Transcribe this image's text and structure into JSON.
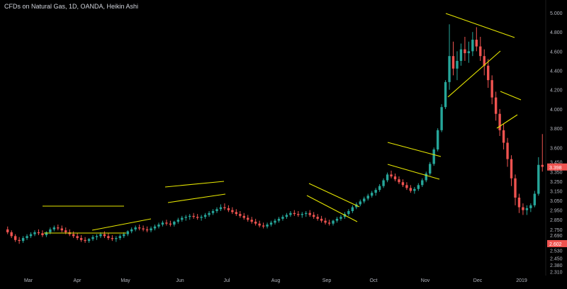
{
  "header": {
    "title": "CFDs on Natural Gas, 1D, OANDA, Heikin Ashi"
  },
  "colors": {
    "background": "#000000",
    "up": "#26a69a",
    "down": "#ef5350",
    "trendline": "#e6e600",
    "axis_text": "#b2b5be",
    "price_tag": "#ef5350"
  },
  "chart_data": {
    "type": "candlestick",
    "title": "CFDs on Natural Gas, 1D, OANDA, Heikin Ashi",
    "xlabel": "",
    "ylabel": "",
    "ylim": [
      2.3,
      5.0
    ],
    "y_ticks": [
      5.0,
      4.8,
      4.6,
      4.4,
      4.2,
      4.0,
      3.8,
      3.6,
      3.45,
      3.35,
      3.25,
      3.15,
      3.05,
      2.95,
      2.85,
      2.75,
      2.69,
      2.53,
      2.45,
      2.38,
      2.31
    ],
    "y_tick_labels": [
      "5.000",
      "4.800",
      "4.600",
      "4.400",
      "4.200",
      "4.000",
      "3.800",
      "3.600",
      "3.450",
      "3.350",
      "3.250",
      "3.150",
      "3.050",
      "2.950",
      "2.850",
      "2.750",
      "2.690",
      "2.530",
      "2.450",
      "2.380",
      "2.310"
    ],
    "x_labels": [
      "Mar",
      "Apr",
      "May",
      "Jun",
      "Jul",
      "Aug",
      "Sep",
      "Oct",
      "Nov",
      "Dec",
      "2019"
    ],
    "price_tags": [
      {
        "label": "3.398",
        "value": 3.398
      },
      {
        "label": "2.602",
        "value": 2.602
      }
    ],
    "series": [
      {
        "values": [
          [
            2.75,
            2.78,
            2.7,
            2.72
          ],
          [
            2.72,
            2.74,
            2.66,
            2.68
          ],
          [
            2.68,
            2.7,
            2.62,
            2.64
          ],
          [
            2.64,
            2.67,
            2.6,
            2.63
          ],
          [
            2.63,
            2.68,
            2.61,
            2.66
          ],
          [
            2.66,
            2.7,
            2.64,
            2.68
          ],
          [
            2.68,
            2.72,
            2.66,
            2.7
          ],
          [
            2.7,
            2.74,
            2.68,
            2.72
          ],
          [
            2.72,
            2.75,
            2.69,
            2.71
          ],
          [
            2.71,
            2.74,
            2.67,
            2.69
          ],
          [
            2.69,
            2.73,
            2.67,
            2.72
          ],
          [
            2.72,
            2.77,
            2.7,
            2.75
          ],
          [
            2.75,
            2.79,
            2.73,
            2.77
          ],
          [
            2.77,
            2.8,
            2.74,
            2.76
          ],
          [
            2.76,
            2.79,
            2.72,
            2.74
          ],
          [
            2.74,
            2.77,
            2.7,
            2.72
          ],
          [
            2.72,
            2.75,
            2.68,
            2.7
          ],
          [
            2.7,
            2.73,
            2.66,
            2.68
          ],
          [
            2.68,
            2.71,
            2.64,
            2.66
          ],
          [
            2.66,
            2.69,
            2.62,
            2.64
          ],
          [
            2.64,
            2.67,
            2.61,
            2.63
          ],
          [
            2.63,
            2.66,
            2.61,
            2.65
          ],
          [
            2.65,
            2.69,
            2.63,
            2.67
          ],
          [
            2.67,
            2.7,
            2.64,
            2.68
          ],
          [
            2.68,
            2.72,
            2.66,
            2.7
          ],
          [
            2.7,
            2.73,
            2.66,
            2.68
          ],
          [
            2.68,
            2.71,
            2.64,
            2.66
          ],
          [
            2.66,
            2.69,
            2.63,
            2.65
          ],
          [
            2.65,
            2.68,
            2.62,
            2.66
          ],
          [
            2.66,
            2.7,
            2.64,
            2.68
          ],
          [
            2.68,
            2.72,
            2.66,
            2.7
          ],
          [
            2.7,
            2.74,
            2.68,
            2.73
          ],
          [
            2.73,
            2.77,
            2.71,
            2.75
          ],
          [
            2.75,
            2.79,
            2.73,
            2.77
          ],
          [
            2.77,
            2.8,
            2.74,
            2.76
          ],
          [
            2.76,
            2.79,
            2.73,
            2.75
          ],
          [
            2.75,
            2.78,
            2.72,
            2.74
          ],
          [
            2.74,
            2.78,
            2.72,
            2.76
          ],
          [
            2.76,
            2.8,
            2.74,
            2.78
          ],
          [
            2.78,
            2.82,
            2.76,
            2.8
          ],
          [
            2.8,
            2.84,
            2.78,
            2.82
          ],
          [
            2.82,
            2.85,
            2.79,
            2.81
          ],
          [
            2.81,
            2.84,
            2.78,
            2.8
          ],
          [
            2.8,
            2.84,
            2.78,
            2.83
          ],
          [
            2.83,
            2.87,
            2.81,
            2.85
          ],
          [
            2.85,
            2.89,
            2.83,
            2.87
          ],
          [
            2.87,
            2.9,
            2.84,
            2.88
          ],
          [
            2.88,
            2.91,
            2.85,
            2.89
          ],
          [
            2.89,
            2.92,
            2.86,
            2.88
          ],
          [
            2.88,
            2.91,
            2.85,
            2.87
          ],
          [
            2.87,
            2.9,
            2.84,
            2.88
          ],
          [
            2.88,
            2.92,
            2.86,
            2.9
          ],
          [
            2.9,
            2.94,
            2.88,
            2.92
          ],
          [
            2.92,
            2.96,
            2.9,
            2.94
          ],
          [
            2.94,
            2.98,
            2.92,
            2.96
          ],
          [
            2.96,
            3.01,
            2.94,
            2.98
          ],
          [
            2.98,
            3.02,
            2.95,
            2.97
          ],
          [
            2.97,
            3.0,
            2.93,
            2.95
          ],
          [
            2.95,
            2.98,
            2.91,
            2.93
          ],
          [
            2.93,
            2.96,
            2.89,
            2.91
          ],
          [
            2.91,
            2.94,
            2.87,
            2.89
          ],
          [
            2.89,
            2.92,
            2.85,
            2.87
          ],
          [
            2.87,
            2.9,
            2.83,
            2.85
          ],
          [
            2.85,
            2.88,
            2.81,
            2.83
          ],
          [
            2.83,
            2.86,
            2.79,
            2.81
          ],
          [
            2.81,
            2.84,
            2.77,
            2.79
          ],
          [
            2.79,
            2.82,
            2.76,
            2.78
          ],
          [
            2.78,
            2.82,
            2.76,
            2.8
          ],
          [
            2.8,
            2.84,
            2.78,
            2.82
          ],
          [
            2.82,
            2.86,
            2.8,
            2.84
          ],
          [
            2.84,
            2.88,
            2.82,
            2.86
          ],
          [
            2.86,
            2.9,
            2.84,
            2.88
          ],
          [
            2.88,
            2.92,
            2.86,
            2.9
          ],
          [
            2.9,
            2.94,
            2.88,
            2.92
          ],
          [
            2.92,
            2.95,
            2.89,
            2.91
          ],
          [
            2.91,
            2.94,
            2.88,
            2.9
          ],
          [
            2.9,
            2.93,
            2.87,
            2.91
          ],
          [
            2.91,
            2.94,
            2.88,
            2.92
          ],
          [
            2.92,
            2.95,
            2.88,
            2.9
          ],
          [
            2.9,
            2.93,
            2.86,
            2.88
          ],
          [
            2.88,
            2.91,
            2.84,
            2.86
          ],
          [
            2.86,
            2.89,
            2.82,
            2.84
          ],
          [
            2.84,
            2.87,
            2.8,
            2.82
          ],
          [
            2.82,
            2.85,
            2.79,
            2.81
          ],
          [
            2.81,
            2.85,
            2.79,
            2.84
          ],
          [
            2.84,
            2.88,
            2.82,
            2.86
          ],
          [
            2.86,
            2.9,
            2.84,
            2.88
          ],
          [
            2.88,
            2.93,
            2.86,
            2.91
          ],
          [
            2.91,
            2.96,
            2.89,
            2.94
          ],
          [
            2.94,
            3.0,
            2.92,
            2.98
          ],
          [
            2.98,
            3.03,
            2.96,
            3.01
          ],
          [
            3.01,
            3.06,
            2.99,
            3.04
          ],
          [
            3.04,
            3.09,
            3.02,
            3.07
          ],
          [
            3.07,
            3.12,
            3.05,
            3.1
          ],
          [
            3.1,
            3.15,
            3.08,
            3.13
          ],
          [
            3.13,
            3.18,
            3.1,
            3.16
          ],
          [
            3.16,
            3.22,
            3.14,
            3.2
          ],
          [
            3.2,
            3.28,
            3.18,
            3.26
          ],
          [
            3.26,
            3.34,
            3.24,
            3.32
          ],
          [
            3.32,
            3.36,
            3.28,
            3.3
          ],
          [
            3.3,
            3.33,
            3.25,
            3.27
          ],
          [
            3.27,
            3.3,
            3.22,
            3.24
          ],
          [
            3.24,
            3.27,
            3.19,
            3.21
          ],
          [
            3.21,
            3.24,
            3.16,
            3.18
          ],
          [
            3.18,
            3.21,
            3.13,
            3.15
          ],
          [
            3.15,
            3.19,
            3.12,
            3.17
          ],
          [
            3.17,
            3.23,
            3.15,
            3.21
          ],
          [
            3.21,
            3.28,
            3.19,
            3.26
          ],
          [
            3.26,
            3.35,
            3.24,
            3.33
          ],
          [
            3.33,
            3.45,
            3.31,
            3.43
          ],
          [
            3.43,
            3.6,
            3.41,
            3.58
          ],
          [
            3.58,
            3.8,
            3.56,
            3.78
          ],
          [
            3.78,
            4.05,
            3.76,
            4.02
          ],
          [
            4.02,
            4.3,
            4.0,
            4.28
          ],
          [
            4.28,
            4.88,
            4.2,
            4.55
          ],
          [
            4.55,
            4.7,
            4.35,
            4.42
          ],
          [
            4.42,
            4.6,
            4.3,
            4.5
          ],
          [
            4.5,
            4.68,
            4.45,
            4.62
          ],
          [
            4.62,
            4.75,
            4.5,
            4.58
          ],
          [
            4.58,
            4.7,
            4.48,
            4.6
          ],
          [
            4.6,
            4.8,
            4.55,
            4.72
          ],
          [
            4.72,
            4.85,
            4.6,
            4.65
          ],
          [
            4.65,
            4.75,
            4.5,
            4.55
          ],
          [
            4.55,
            4.62,
            4.35,
            4.45
          ],
          [
            4.45,
            4.52,
            4.22,
            4.3
          ],
          [
            4.3,
            4.35,
            4.05,
            4.12
          ],
          [
            4.12,
            4.18,
            3.88,
            3.95
          ],
          [
            3.95,
            4.0,
            3.72,
            3.78
          ],
          [
            3.78,
            3.85,
            3.58,
            3.65
          ],
          [
            3.65,
            3.7,
            3.4,
            3.48
          ],
          [
            3.48,
            3.52,
            3.2,
            3.28
          ],
          [
            3.28,
            3.32,
            3.0,
            3.08
          ],
          [
            3.08,
            3.12,
            2.92,
            2.98
          ],
          [
            2.98,
            3.02,
            2.9,
            2.95
          ],
          [
            2.95,
            3.0,
            2.9,
            2.97
          ],
          [
            2.97,
            3.02,
            2.93,
            3.0
          ],
          [
            3.0,
            3.15,
            2.98,
            3.12
          ],
          [
            3.12,
            3.5,
            3.1,
            3.42
          ],
          [
            3.42,
            3.74,
            3.35,
            3.4
          ]
        ]
      }
    ]
  }
}
